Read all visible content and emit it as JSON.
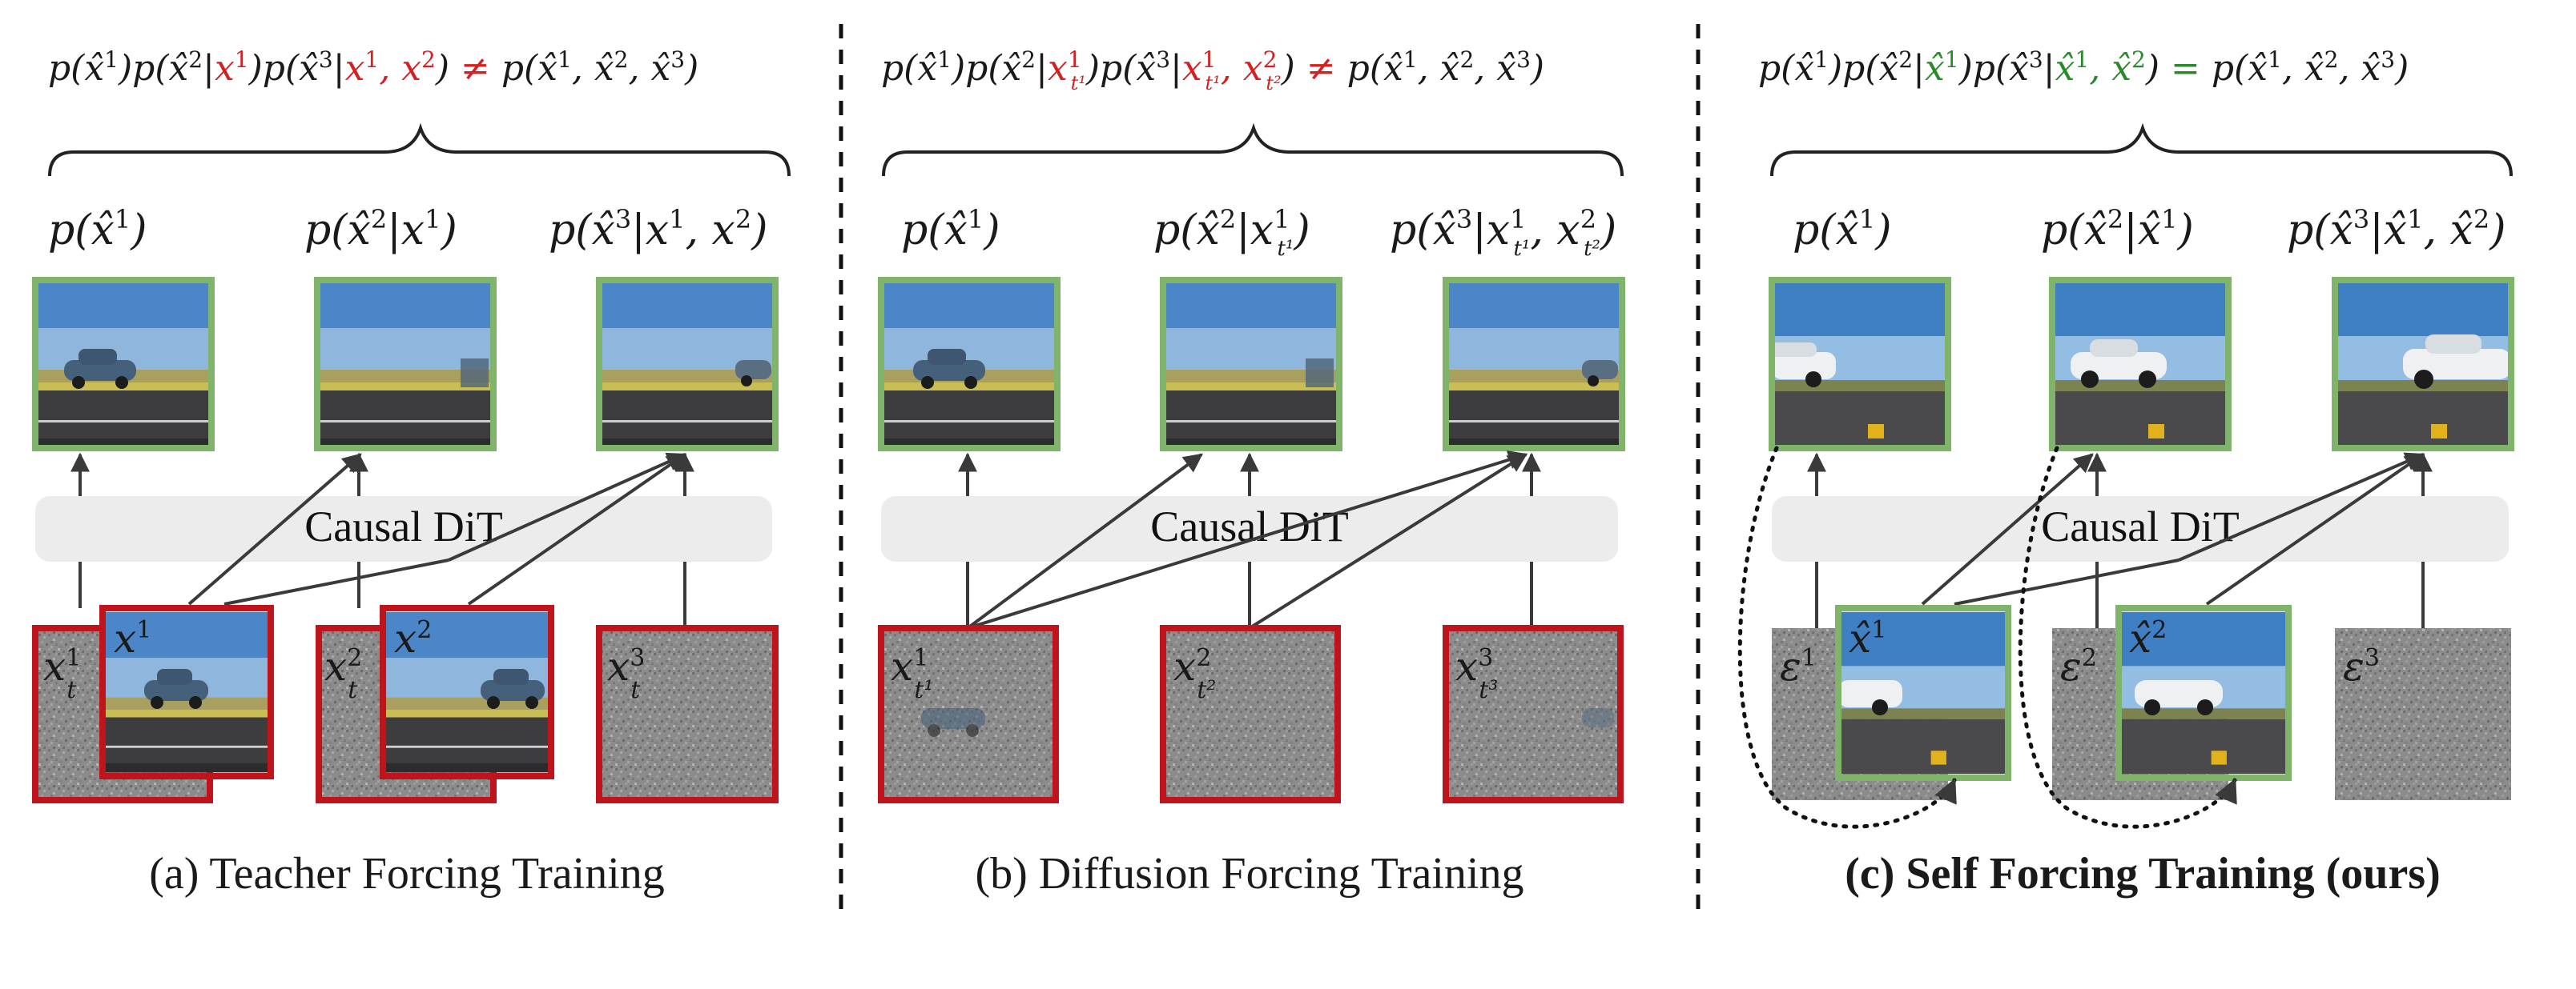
{
  "colors": {
    "clean_frame_border": "#7fb46a",
    "noisy_frame_border": "#c0141c",
    "mismatch_text": "#d42020",
    "match_text": "#2a8a2a",
    "dit_box": "#ececec"
  },
  "panels": [
    {
      "id": "teacher",
      "caption": "(a) Teacher Forcing Training",
      "joint_tail": "≠",
      "model_label": "Causal DiT",
      "outputs": [
        "p(x̂¹)",
        "p(x̂²|x¹)",
        "p(x̂³|x¹, x²)"
      ],
      "inputs": [
        "x¹ₜ",
        "x¹",
        "x²ₜ",
        "x²",
        "x³ₜ"
      ]
    },
    {
      "id": "diffusion",
      "caption": "(b) Diffusion Forcing Training",
      "joint_tail": "≠",
      "model_label": "Causal DiT",
      "outputs": [
        "p(x̂¹)",
        "p(x̂²|x¹ₜ₁)",
        "p(x̂³|x¹ₜ₁, x²ₜ₂)"
      ],
      "inputs": [
        "x¹ₜ₁",
        "x²ₜ₂",
        "x³ₜ₃"
      ]
    },
    {
      "id": "self",
      "caption": "(c) Self Forcing Training (ours)",
      "joint_tail": "=",
      "model_label": "Causal DiT",
      "outputs": [
        "p(x̂¹)",
        "p(x̂²|x̂¹)",
        "p(x̂³|x̂¹, x̂²)"
      ],
      "inputs": [
        "ε¹",
        "x̂¹",
        "ε²",
        "x̂²",
        "ε³"
      ]
    }
  ]
}
